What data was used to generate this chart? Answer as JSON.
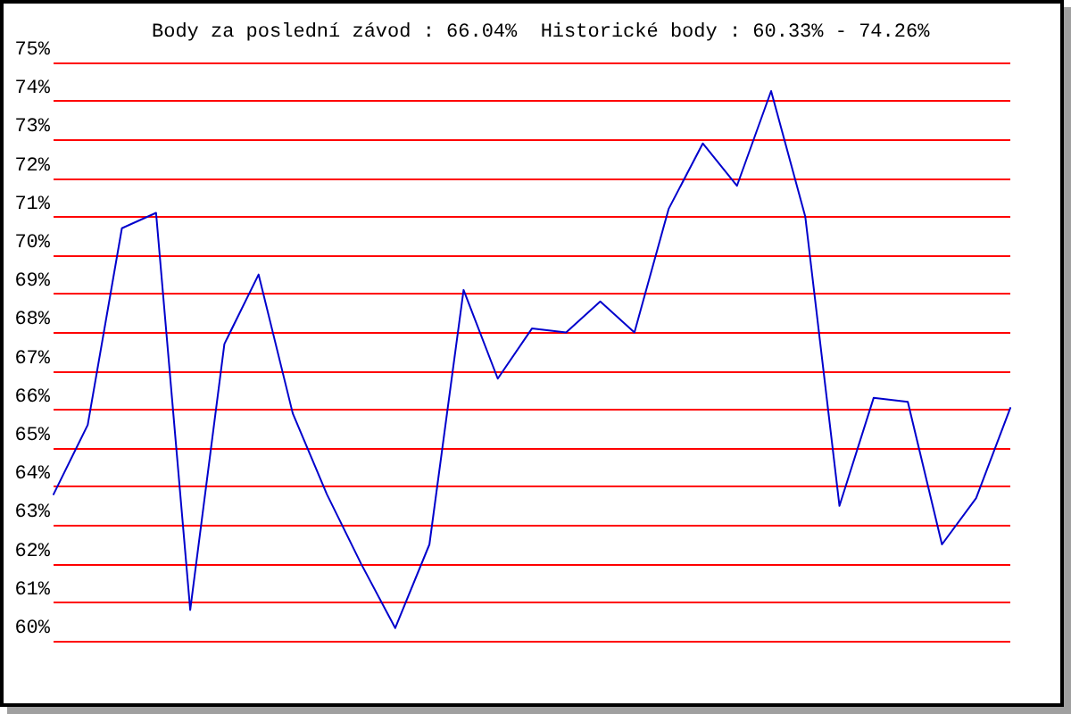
{
  "chart_data": {
    "type": "line",
    "title": "Body za poslední závod : 66.04%  Historické body : 60.33% - 74.26%",
    "categories": [
      null,
      null,
      null,
      null,
      null,
      null,
      null,
      null,
      null,
      null,
      null,
      null,
      null,
      null,
      null,
      null,
      null,
      null,
      null,
      null,
      null,
      null,
      null,
      null,
      null,
      null,
      null,
      null,
      null
    ],
    "values": [
      63.8,
      65.6,
      70.7,
      71.1,
      60.8,
      67.7,
      69.5,
      65.9,
      63.8,
      62.0,
      60.33,
      62.5,
      69.1,
      66.8,
      68.1,
      68.0,
      68.8,
      68.0,
      71.2,
      72.9,
      71.8,
      74.26,
      71.0,
      63.5,
      66.3,
      66.2,
      62.5,
      63.7,
      66.04
    ],
    "color": "#0000cc",
    "ylim": [
      60,
      75
    ],
    "yticks": [
      {
        "value": 60,
        "label": "60%"
      },
      {
        "value": 61,
        "label": "61%"
      },
      {
        "value": 62,
        "label": "62%"
      },
      {
        "value": 63,
        "label": "63%"
      },
      {
        "value": 64,
        "label": "64%"
      },
      {
        "value": 65,
        "label": "65%"
      },
      {
        "value": 66,
        "label": "66%"
      },
      {
        "value": 67,
        "label": "67%"
      },
      {
        "value": 68,
        "label": "68%"
      },
      {
        "value": 69,
        "label": "69%"
      },
      {
        "value": 70,
        "label": "70%"
      },
      {
        "value": 71,
        "label": "71%"
      },
      {
        "value": 72,
        "label": "72%"
      },
      {
        "value": 73,
        "label": "73%"
      },
      {
        "value": 74,
        "label": "74%"
      },
      {
        "value": 75,
        "label": "75%"
      }
    ],
    "grid": "y",
    "tick_labels": "y",
    "marker": "none",
    "line_style": "solid"
  }
}
